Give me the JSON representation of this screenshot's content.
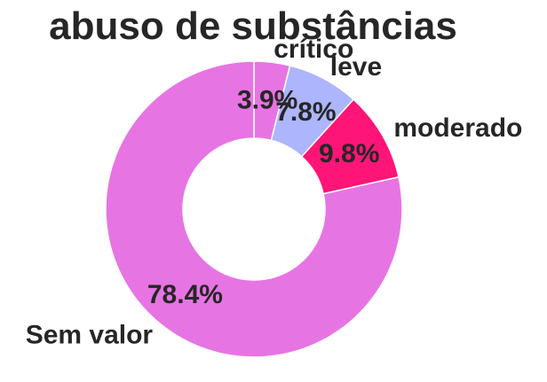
{
  "chart_data": {
    "type": "pie",
    "variant": "donut",
    "title": "abuso de substâncias",
    "categories": [
      "crítico",
      "leve",
      "moderado",
      "Sem valor"
    ],
    "values": [
      3.9,
      7.8,
      9.8,
      78.4
    ],
    "value_labels": [
      "3.9%",
      "7.8%",
      "9.8%",
      "78.4%"
    ],
    "colors": [
      "#e774e3",
      "#adb5fc",
      "#ff1577",
      "#e774e3"
    ],
    "start_angle": "top",
    "direction": "clockwise",
    "legend": "none"
  }
}
